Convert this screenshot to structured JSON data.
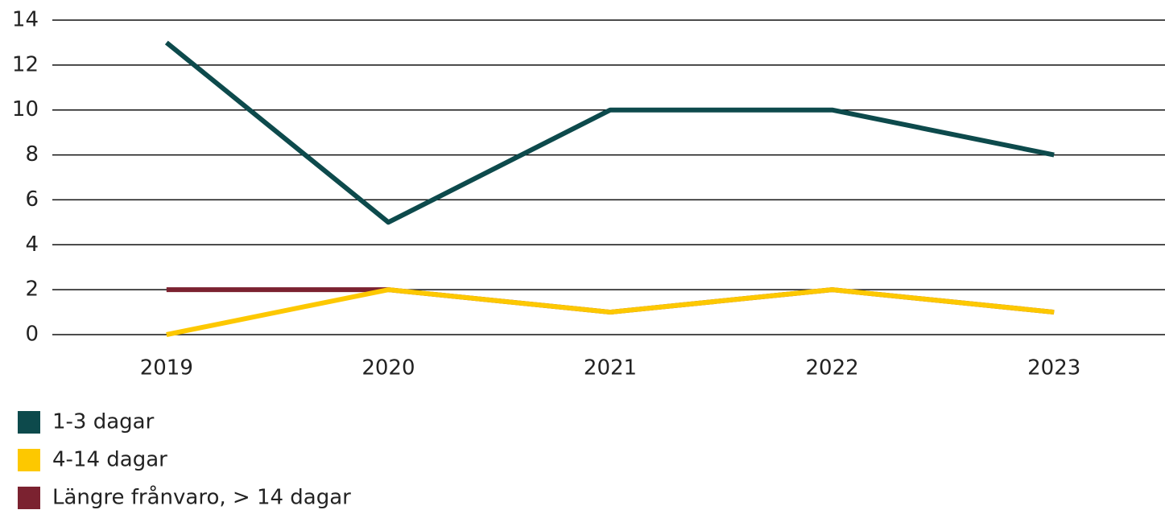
{
  "chart_data": {
    "type": "line",
    "categories": [
      "2019",
      "2020",
      "2021",
      "2022",
      "2023"
    ],
    "series": [
      {
        "name": "1-3 dagar",
        "color": "#0d4a4c",
        "values": [
          13,
          5,
          10,
          10,
          8
        ]
      },
      {
        "name": "4-14 dagar",
        "color": "#fdc800",
        "values": [
          0,
          2,
          1,
          2,
          1
        ]
      },
      {
        "name": "Längre frånvaro, > 14 dagar",
        "color": "#7b2230",
        "values": [
          2,
          2,
          1,
          2,
          1
        ]
      }
    ],
    "ylim": [
      0,
      14
    ],
    "yticks": [
      0,
      2,
      4,
      6,
      8,
      10,
      12,
      14
    ],
    "grid": true,
    "legend": "bottom-left"
  }
}
